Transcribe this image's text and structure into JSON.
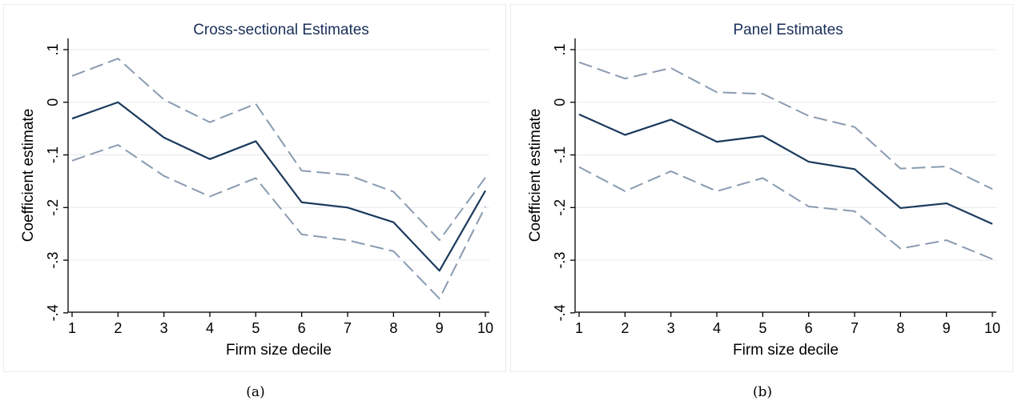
{
  "chart_data": [
    {
      "type": "line",
      "title": "Cross-sectional Estimates",
      "xlabel": "Firm size decile",
      "ylabel": "Coefficient estimate",
      "x": [
        1,
        2,
        3,
        4,
        5,
        6,
        7,
        8,
        9,
        10
      ],
      "xticks": [
        "1",
        "2",
        "3",
        "4",
        "5",
        "6",
        "7",
        "8",
        "9",
        "10"
      ],
      "yticks": [
        {
          "value": 0.1,
          "label": ".1"
        },
        {
          "value": 0,
          "label": "0"
        },
        {
          "value": -0.1,
          "label": "-.1"
        },
        {
          "value": -0.2,
          "label": "-.2"
        },
        {
          "value": -0.3,
          "label": "-.3"
        },
        {
          "value": -0.4,
          "label": "-.4"
        }
      ],
      "ylim": [
        -0.42,
        0.1
      ],
      "grid": true,
      "series": [
        {
          "role": "upper",
          "style": "dashed",
          "color": "#8a9bb0",
          "values": [
            0.05,
            0.083,
            0.005,
            -0.038,
            -0.003,
            -0.13,
            -0.138,
            -0.17,
            -0.262,
            -0.143
          ]
        },
        {
          "role": "estimate",
          "style": "solid",
          "color": "#1a3a5c",
          "values": [
            -0.031,
            0.0,
            -0.067,
            -0.108,
            -0.074,
            -0.19,
            -0.2,
            -0.228,
            -0.32,
            -0.168
          ]
        },
        {
          "role": "lower",
          "style": "dashed",
          "color": "#8a9bb0",
          "values": [
            -0.111,
            -0.081,
            -0.14,
            -0.179,
            -0.144,
            -0.251,
            -0.262,
            -0.283,
            -0.373,
            -0.198
          ]
        }
      ]
    },
    {
      "type": "line",
      "title": "Panel Estimates",
      "xlabel": "Firm size decile",
      "ylabel": "Coefficient estimate",
      "x": [
        1,
        2,
        3,
        4,
        5,
        6,
        7,
        8,
        9,
        10
      ],
      "xticks": [
        "1",
        "2",
        "3",
        "4",
        "5",
        "6",
        "7",
        "8",
        "9",
        "10"
      ],
      "yticks": [
        {
          "value": 0.1,
          "label": ".1"
        },
        {
          "value": 0,
          "label": "0"
        },
        {
          "value": -0.1,
          "label": "-.1"
        },
        {
          "value": -0.2,
          "label": "-.2"
        },
        {
          "value": -0.3,
          "label": "-.3"
        },
        {
          "value": -0.4,
          "label": "-.4"
        }
      ],
      "ylim": [
        -0.42,
        0.1
      ],
      "grid": true,
      "series": [
        {
          "role": "upper",
          "style": "dashed",
          "color": "#8a9bb0",
          "values": [
            0.076,
            0.045,
            0.065,
            0.019,
            0.016,
            -0.026,
            -0.047,
            -0.126,
            -0.122,
            -0.165
          ]
        },
        {
          "role": "estimate",
          "style": "solid",
          "color": "#1a3a5c",
          "values": [
            -0.023,
            -0.062,
            -0.033,
            -0.075,
            -0.064,
            -0.113,
            -0.127,
            -0.201,
            -0.192,
            -0.231
          ]
        },
        {
          "role": "lower",
          "style": "dashed",
          "color": "#8a9bb0",
          "values": [
            -0.123,
            -0.169,
            -0.131,
            -0.169,
            -0.144,
            -0.198,
            -0.207,
            -0.278,
            -0.262,
            -0.298
          ]
        }
      ]
    }
  ],
  "captions": [
    "(a)",
    "(b)"
  ]
}
